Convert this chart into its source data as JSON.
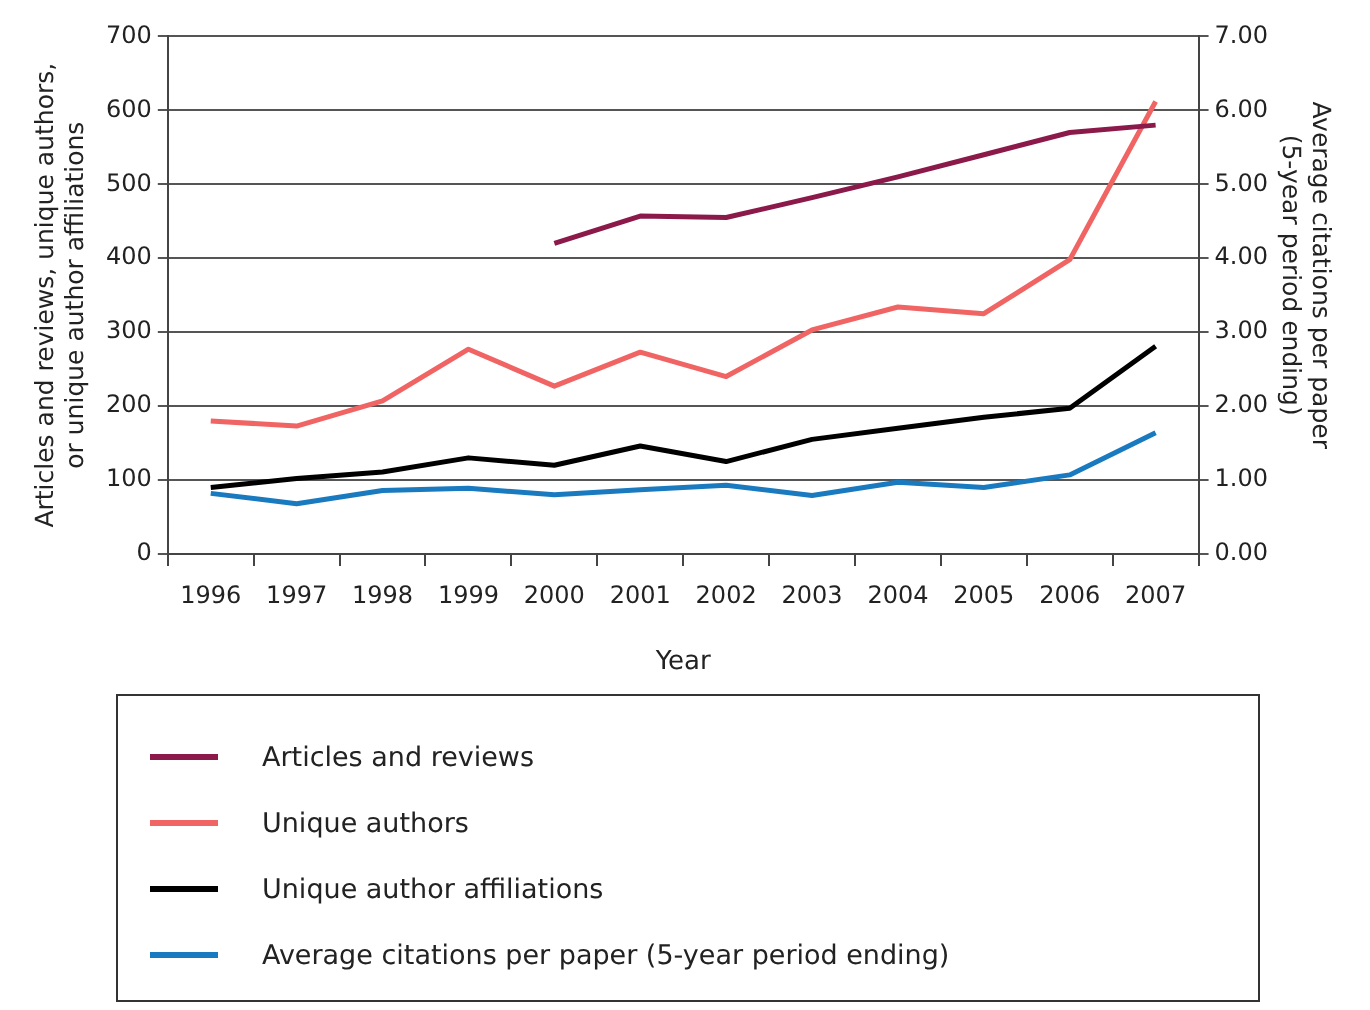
{
  "chart_data": {
    "type": "line",
    "xlabel": "Year",
    "ylabel": "Articles and reviews, unique authors, or unique author affiliations",
    "y2label": "Average citations per paper (5-year period ending)",
    "categories": [
      "1996",
      "1997",
      "1998",
      "1999",
      "2000",
      "2001",
      "2002",
      "2003",
      "2004",
      "2005",
      "2006",
      "2007"
    ],
    "series": [
      {
        "name": "Articles and reviews",
        "color": "#8b1a4a",
        "values": [
          null,
          null,
          null,
          null,
          420,
          457,
          455,
          482,
          510,
          540,
          570,
          580
        ]
      },
      {
        "name": "Unique authors",
        "color": "#f06464",
        "values": [
          180,
          173,
          207,
          277,
          227,
          273,
          240,
          303,
          334,
          325,
          398,
          612
        ]
      },
      {
        "name": "Unique author affiliations",
        "color": "#000000",
        "values": [
          90,
          102,
          111,
          130,
          120,
          146,
          125,
          155,
          170,
          185,
          197,
          281
        ]
      },
      {
        "name": "Average citations per paper (5-year period ending)",
        "color": "#1a7abf",
        "axis": "y2",
        "values": [
          0.82,
          0.68,
          0.86,
          0.89,
          0.8,
          0.87,
          0.93,
          0.79,
          0.97,
          0.9,
          1.07,
          1.64
        ]
      }
    ],
    "ylim": [
      0,
      700
    ],
    "yticks": [
      0,
      100,
      200,
      300,
      400,
      500,
      600,
      700
    ],
    "y2lim": [
      0,
      7
    ],
    "y2ticks": [
      {
        "value": 0,
        "label": "0.00"
      },
      {
        "value": 1,
        "label": "1.00"
      },
      {
        "value": 2,
        "label": "2.00"
      },
      {
        "value": 3,
        "label": "3.00"
      },
      {
        "value": 4,
        "label": "4.00"
      },
      {
        "value": 5,
        "label": "5.00"
      },
      {
        "value": 6,
        "label": "6.00"
      },
      {
        "value": 7,
        "label": "7.00"
      }
    ],
    "grid": "y",
    "legend": "bottom",
    "marker": "none",
    "line_style": "solid"
  }
}
